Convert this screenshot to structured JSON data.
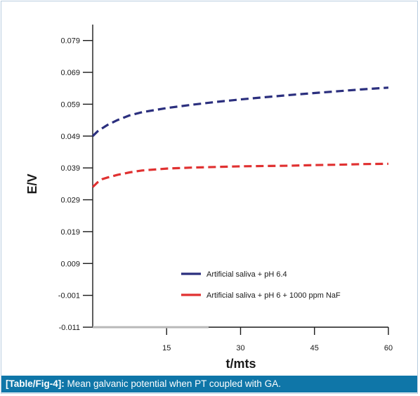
{
  "caption": {
    "label": "[Table/Fig-4]:",
    "text": "Mean galvanic potential when PT coupled with GA."
  },
  "chart_data": {
    "type": "line",
    "title": "",
    "xlabel": "t/mts",
    "ylabel": "E/V",
    "xlim": [
      0,
      60
    ],
    "ylim": [
      -0.011,
      0.084
    ],
    "x_ticks": [
      15,
      30,
      45,
      60
    ],
    "x_tick_labels": [
      "15",
      "30",
      "45",
      "60"
    ],
    "y_ticks": [
      -0.011,
      -0.001,
      0.009,
      0.019,
      0.029,
      0.039,
      0.049,
      0.059,
      0.069,
      0.079
    ],
    "y_tick_labels": [
      "-0.011",
      "-0.001",
      "0.009",
      "0.019",
      "0.029",
      "0.039",
      "0.049",
      "0.059",
      "0.069",
      "0.079"
    ],
    "grid": false,
    "legend_position": "bottom-right",
    "series": [
      {
        "name": "Artificial saliva + pH 6.4",
        "color": "#2b2f7e",
        "x": [
          0,
          1,
          2,
          3,
          5,
          7.5,
          10,
          15,
          20,
          25,
          30,
          35,
          40,
          45,
          50,
          55,
          60
        ],
        "values": [
          0.049,
          0.0505,
          0.0515,
          0.0525,
          0.054,
          0.0555,
          0.0565,
          0.0578,
          0.0588,
          0.0597,
          0.0605,
          0.0612,
          0.0619,
          0.0625,
          0.0631,
          0.0637,
          0.0642
        ]
      },
      {
        "name": "Artificial saliva + pH 6 + 1000 ppm NaF",
        "color": "#e03131",
        "x": [
          0,
          1,
          2,
          3,
          5,
          7.5,
          10,
          15,
          20,
          25,
          30,
          35,
          40,
          45,
          50,
          55,
          60
        ],
        "values": [
          0.033,
          0.0345,
          0.0355,
          0.036,
          0.0368,
          0.0376,
          0.0382,
          0.0388,
          0.0391,
          0.0393,
          0.0395,
          0.0396,
          0.0397,
          0.0399,
          0.04,
          0.0402,
          0.0403
        ]
      }
    ]
  }
}
